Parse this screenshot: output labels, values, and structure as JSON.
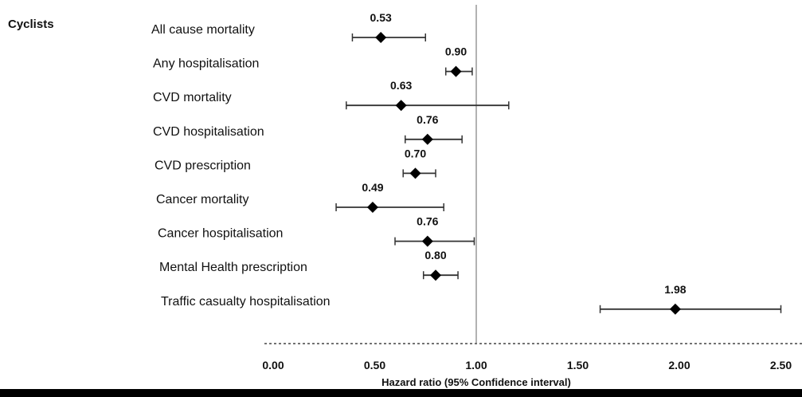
{
  "chart_data": {
    "type": "forest",
    "group_label": "Cyclists",
    "xlabel": "Hazard ratio (95% Confidence interval)",
    "xlim": [
      0,
      2.5
    ],
    "xticks": [
      "0.00",
      "0.50",
      "1.00",
      "1.50",
      "2.00",
      "2.50"
    ],
    "reference_line": 1.0,
    "rows": [
      {
        "label": "All cause mortality",
        "hr": 0.53,
        "hr_label": "0.53",
        "lo": 0.39,
        "hi": 0.75
      },
      {
        "label": "Any hospitalisation",
        "hr": 0.9,
        "hr_label": "0.90",
        "lo": 0.85,
        "hi": 0.98
      },
      {
        "label": "CVD mortality",
        "hr": 0.63,
        "hr_label": "0.63",
        "lo": 0.36,
        "hi": 1.16
      },
      {
        "label": "CVD hospitalisation",
        "hr": 0.76,
        "hr_label": "0.76",
        "lo": 0.65,
        "hi": 0.93
      },
      {
        "label": "CVD prescription",
        "hr": 0.7,
        "hr_label": "0.70",
        "lo": 0.64,
        "hi": 0.8
      },
      {
        "label": "Cancer mortality",
        "hr": 0.49,
        "hr_label": "0.49",
        "lo": 0.31,
        "hi": 0.84
      },
      {
        "label": "Cancer hospitalisation",
        "hr": 0.76,
        "hr_label": "0.76",
        "lo": 0.6,
        "hi": 0.99
      },
      {
        "label": "Mental Health prescription",
        "hr": 0.8,
        "hr_label": "0.80",
        "lo": 0.74,
        "hi": 0.91
      },
      {
        "label": "Traffic casualty hospitalisation",
        "hr": 1.98,
        "hr_label": "1.98",
        "lo": 1.61,
        "hi": 2.5
      }
    ]
  }
}
